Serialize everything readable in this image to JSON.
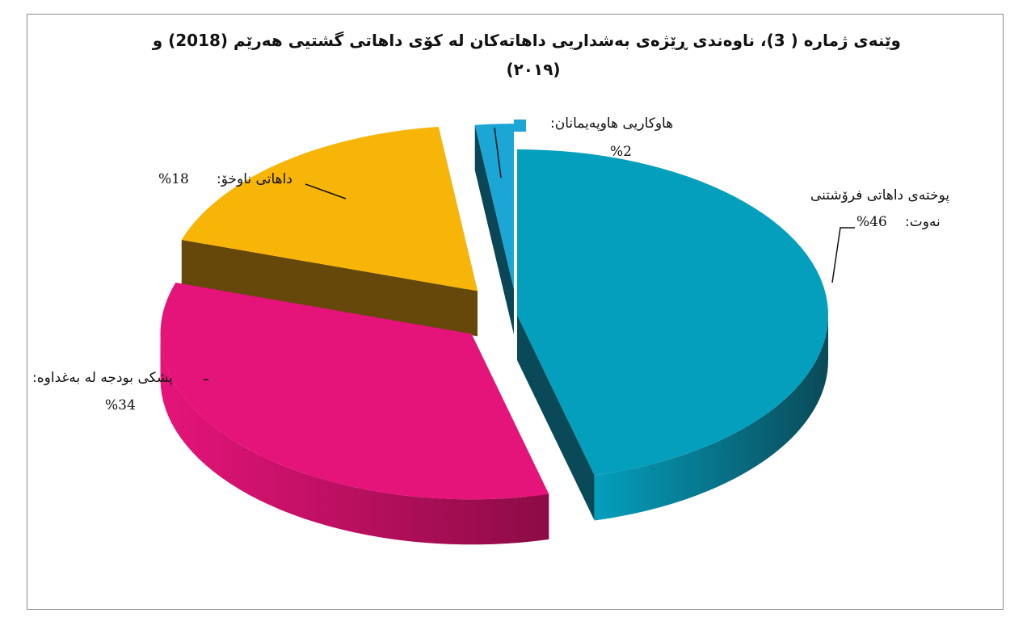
{
  "chart_data": {
    "type": "pie",
    "title_line_1": "وێنەی ژمارە ( 3)، ناوەندی ڕێژەی بەشداریی داهاتەکان لە کۆی داهاتی گشتیی هەرێم (2018) و",
    "title_line_2": "(٢٠١٩)",
    "three_d": true,
    "exploded": true,
    "slices": [
      {
        "label": "پوختەی داهاتی فرۆشتنی نەوت:",
        "label_line_1": "پوختەی داهاتی فرۆشتنی",
        "label_line_2": "نەوت:",
        "value": 46,
        "value_text": "%46",
        "color": "#049fbd",
        "side_color": "#0a4a58"
      },
      {
        "label": "پشکی بودجە لە بەغداوە:",
        "value": 34,
        "value_text": "%34",
        "color": "#e5147a",
        "side_color": "#8c0b45"
      },
      {
        "label": "داهاتی ناوخۆ:",
        "value": 18,
        "value_text": "%18",
        "color": "#f7b508",
        "side_color": "#66490a"
      },
      {
        "label": "هاوکاریی هاوپەیمانان:",
        "value": 2,
        "value_text": "%2",
        "color": "#1ba6d6",
        "side_color": "#0b4656"
      }
    ]
  }
}
